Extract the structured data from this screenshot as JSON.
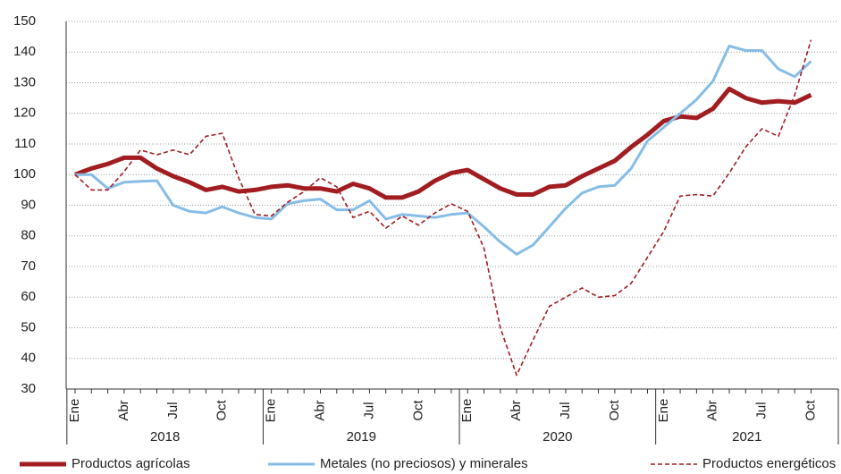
{
  "chart_data": {
    "type": "line",
    "categories": [
      "Ene",
      null,
      null,
      "Abr",
      null,
      null,
      "Jul",
      null,
      null,
      "Oct",
      null,
      null,
      "Ene",
      null,
      null,
      "Abr",
      null,
      null,
      "Jul",
      null,
      null,
      "Oct",
      null,
      null,
      "Ene",
      null,
      null,
      "Abr",
      null,
      null,
      "Jul",
      null,
      null,
      "Oct",
      null,
      null,
      "Ene",
      null,
      null,
      "Abr",
      null,
      null,
      "Jul",
      null,
      null,
      "Oct"
    ],
    "years": [
      "2018",
      "2019",
      "2020",
      "2021"
    ],
    "series": [
      {
        "name": "Productos agrícolas",
        "color": "#a11d21",
        "dash": false,
        "width": 5,
        "values": [
          100,
          102,
          103.5,
          105.5,
          105.5,
          102,
          99.5,
          97.5,
          95,
          96,
          94.5,
          95,
          96,
          96.5,
          95.5,
          95.5,
          94.5,
          97,
          95.5,
          92.5,
          92.5,
          94.5,
          98,
          100.5,
          101.5,
          98.5,
          95.5,
          93.5,
          93.5,
          96,
          96.5,
          99.5,
          102,
          104.5,
          109,
          113,
          117.5,
          119,
          118.5,
          121.5,
          128,
          125,
          123.5,
          124,
          123.5,
          126
        ]
      },
      {
        "name": "Metales (no preciosos) y minerales",
        "color": "#86bde6",
        "dash": false,
        "width": 3,
        "values": [
          100,
          100,
          95.5,
          97.5,
          97.8,
          98,
          90,
          88,
          87.5,
          89.5,
          87.5,
          86,
          85.5,
          90.5,
          91.5,
          92,
          88.5,
          88.5,
          91.5,
          85.5,
          87,
          86.5,
          86,
          87,
          87.5,
          83,
          78,
          74,
          77,
          83,
          89,
          94,
          96,
          96.5,
          102,
          111,
          115.5,
          120,
          124.5,
          130.5,
          142,
          140.5,
          140.5,
          134.5,
          132,
          137
        ]
      },
      {
        "name": "Productos energéticos",
        "color": "#a11d21",
        "dash": true,
        "width": 1.6,
        "values": [
          100,
          95,
          95,
          101,
          108,
          106.5,
          108,
          106.5,
          112.5,
          113.5,
          99,
          87,
          86.5,
          91,
          94.5,
          99,
          96,
          86,
          88,
          82.5,
          86.5,
          83.5,
          87.5,
          90.5,
          88,
          76,
          50,
          34.5,
          46,
          57,
          60,
          63,
          60,
          60.5,
          64.5,
          73,
          81.5,
          93,
          93.5,
          93,
          100.5,
          109,
          115,
          112.5,
          126,
          144
        ]
      }
    ],
    "ylim": [
      30,
      150
    ],
    "yticks": [
      30,
      40,
      50,
      60,
      70,
      80,
      90,
      100,
      110,
      120,
      130,
      140,
      150
    ],
    "grid": true
  }
}
